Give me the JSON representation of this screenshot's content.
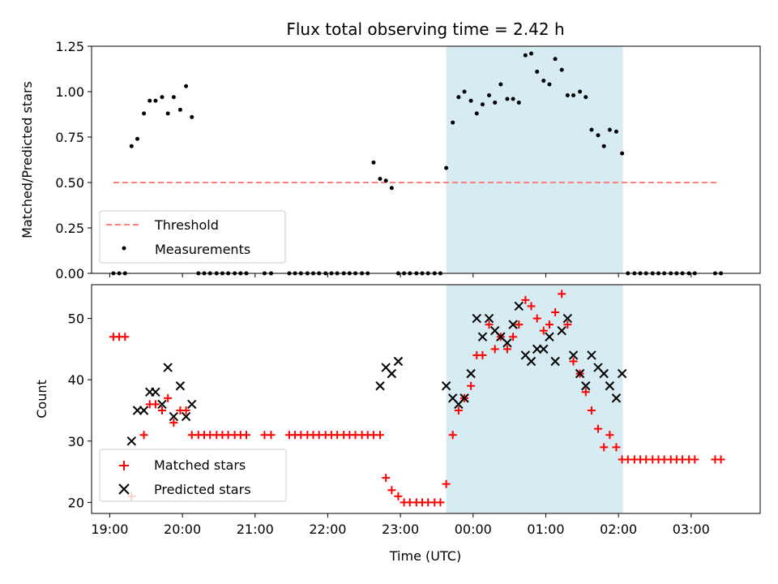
{
  "chart_data": [
    {
      "type": "scatter",
      "title": "Flux total observing time = 2.42 h",
      "xlabel": "",
      "ylabel": "Matched/Predicted stars",
      "ylim": [
        0,
        1.25
      ],
      "yticks": [
        "0.00",
        "0.25",
        "0.50",
        "0.75",
        "1.00",
        "1.25"
      ],
      "xlim_hours": [
        18.75,
        27.95
      ],
      "highlight_span_hours": [
        23.63,
        26.06
      ],
      "highlight_color": "#add8e6",
      "legend_placement": "lower-left",
      "threshold": {
        "name": "Threshold",
        "value": 0.5,
        "x_range_hours": [
          19.05,
          27.38
        ],
        "color": "#ff7f7f"
      },
      "series": [
        {
          "name": "Measurements",
          "color": "#000000",
          "x_hours": [
            19.05,
            19.13,
            19.21,
            19.3,
            19.38,
            19.47,
            19.55,
            19.63,
            19.72,
            19.8,
            19.88,
            19.97,
            20.05,
            20.13,
            20.22,
            20.3,
            20.38,
            20.47,
            20.55,
            20.63,
            20.72,
            20.8,
            20.88,
            21.13,
            21.22,
            21.47,
            21.55,
            21.63,
            21.72,
            21.8,
            21.88,
            21.97,
            22.05,
            22.13,
            22.22,
            22.3,
            22.38,
            22.47,
            22.55,
            22.63,
            22.72,
            22.8,
            22.88,
            22.97,
            23.05,
            23.13,
            23.22,
            23.3,
            23.38,
            23.47,
            23.55,
            23.63,
            23.72,
            23.8,
            23.88,
            23.97,
            24.05,
            24.13,
            24.22,
            24.3,
            24.38,
            24.47,
            24.55,
            24.63,
            24.72,
            24.8,
            24.88,
            24.97,
            25.05,
            25.13,
            25.22,
            25.3,
            25.38,
            25.47,
            25.55,
            25.63,
            25.72,
            25.8,
            25.88,
            25.97,
            26.05,
            26.13,
            26.22,
            26.3,
            26.38,
            26.47,
            26.55,
            26.63,
            26.72,
            26.8,
            26.88,
            26.97,
            27.05,
            27.33,
            27.41
          ],
          "values": [
            0,
            0,
            0,
            0.7,
            0.74,
            0.88,
            0.95,
            0.95,
            0.97,
            0.88,
            0.97,
            0.9,
            1.03,
            0.86,
            0,
            0,
            0,
            0,
            0,
            0,
            0,
            0,
            0,
            0,
            0,
            0,
            0,
            0,
            0,
            0,
            0,
            0,
            0,
            0,
            0,
            0,
            0,
            0,
            0,
            0.61,
            0.52,
            0.51,
            0.47,
            0,
            0,
            0,
            0,
            0,
            0,
            0,
            0,
            0.58,
            0.83,
            0.97,
            1.0,
            0.95,
            0.88,
            0.93,
            0.98,
            0.94,
            1.04,
            0.96,
            0.96,
            0.94,
            1.2,
            1.21,
            1.11,
            1.06,
            1.04,
            1.18,
            1.12,
            0.98,
            0.98,
            1.0,
            0.97,
            0.79,
            0.76,
            0.7,
            0.79,
            0.78,
            0.66,
            0,
            0,
            0,
            0,
            0,
            0,
            0,
            0,
            0,
            0,
            0,
            0,
            0,
            0
          ]
        }
      ]
    },
    {
      "type": "scatter",
      "title": "",
      "xlabel": "Time (UTC)",
      "ylabel": "Count",
      "ylim": [
        18.2,
        55.5
      ],
      "yticks": [
        "20",
        "30",
        "40",
        "50"
      ],
      "xticks": [
        "19:00",
        "20:00",
        "21:00",
        "22:00",
        "23:00",
        "00:00",
        "01:00",
        "02:00",
        "03:00"
      ],
      "xlim_hours": [
        18.75,
        27.95
      ],
      "highlight_span_hours": [
        23.63,
        26.06
      ],
      "highlight_color": "#add8e6",
      "legend_placement": "lower-left",
      "series": [
        {
          "name": "Matched stars",
          "marker": "plus",
          "color": "#ff0000",
          "x_hours": [
            19.05,
            19.13,
            19.21,
            19.3,
            19.47,
            19.55,
            19.63,
            19.72,
            19.8,
            19.88,
            19.97,
            20.05,
            20.13,
            20.22,
            20.3,
            20.38,
            20.47,
            20.55,
            20.63,
            20.72,
            20.8,
            20.88,
            21.13,
            21.22,
            21.47,
            21.55,
            21.63,
            21.72,
            21.8,
            21.88,
            21.97,
            22.05,
            22.13,
            22.22,
            22.3,
            22.38,
            22.47,
            22.55,
            22.63,
            22.72,
            22.8,
            22.88,
            22.97,
            23.05,
            23.13,
            23.22,
            23.3,
            23.38,
            23.47,
            23.55,
            23.63,
            23.72,
            23.8,
            23.88,
            23.97,
            24.05,
            24.13,
            24.22,
            24.3,
            24.38,
            24.47,
            24.55,
            24.63,
            24.72,
            24.8,
            24.88,
            24.97,
            25.05,
            25.13,
            25.22,
            25.3,
            25.38,
            25.47,
            25.55,
            25.63,
            25.72,
            25.8,
            25.88,
            25.97,
            26.05,
            26.13,
            26.22,
            26.3,
            26.38,
            26.47,
            26.55,
            26.63,
            26.72,
            26.8,
            26.88,
            26.97,
            27.05,
            27.33,
            27.41
          ],
          "values": [
            47,
            47,
            47,
            21,
            31,
            36,
            36,
            35,
            37,
            33,
            35,
            35,
            31,
            31,
            31,
            31,
            31,
            31,
            31,
            31,
            31,
            31,
            31,
            31,
            31,
            31,
            31,
            31,
            31,
            31,
            31,
            31,
            31,
            31,
            31,
            31,
            31,
            31,
            31,
            31,
            24,
            22,
            21,
            20,
            20,
            20,
            20,
            20,
            20,
            20,
            23,
            31,
            35,
            37,
            39,
            44,
            44,
            49,
            45,
            47,
            45,
            47,
            49,
            53,
            52,
            50,
            48,
            49,
            51,
            54,
            49,
            43,
            41,
            38,
            35,
            32,
            29,
            31,
            29,
            27,
            27,
            27,
            27,
            27,
            27,
            27,
            27,
            27,
            27,
            27,
            27,
            27,
            27,
            27
          ]
        },
        {
          "name": "Predicted stars",
          "marker": "x",
          "color": "#000000",
          "x_hours": [
            19.3,
            19.38,
            19.47,
            19.55,
            19.63,
            19.72,
            19.8,
            19.88,
            19.97,
            20.05,
            20.13,
            22.72,
            22.8,
            22.88,
            22.97,
            23.63,
            23.72,
            23.8,
            23.88,
            23.97,
            24.05,
            24.13,
            24.22,
            24.3,
            24.38,
            24.47,
            24.55,
            24.63,
            24.72,
            24.8,
            24.88,
            24.97,
            25.05,
            25.13,
            25.22,
            25.3,
            25.38,
            25.47,
            25.55,
            25.63,
            25.72,
            25.8,
            25.88,
            25.97,
            26.05
          ],
          "values": [
            30,
            35,
            35,
            38,
            38,
            36,
            42,
            34,
            39,
            34,
            36,
            39,
            42,
            41,
            43,
            39,
            37,
            36,
            37,
            41,
            50,
            47,
            50,
            48,
            47,
            46,
            49,
            52,
            44,
            43,
            45,
            45,
            47,
            43,
            48,
            50,
            44,
            41,
            39,
            44,
            42,
            41,
            39,
            37,
            41
          ]
        }
      ]
    }
  ],
  "legend": {
    "top": [
      "Threshold",
      "Measurements"
    ],
    "bottom": [
      "Matched stars",
      "Predicted stars"
    ]
  }
}
